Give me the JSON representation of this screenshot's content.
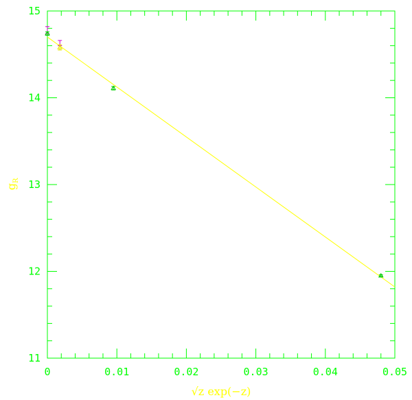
{
  "chart_data": {
    "type": "scatter",
    "xlabel": "√z exp(−z)",
    "ylabel": "g",
    "ylabel_subscript": "R",
    "xlim": [
      0,
      0.05
    ],
    "ylim": [
      11,
      15
    ],
    "x_ticks": [
      "0",
      "0.01",
      "0.02",
      "0.03",
      "0.04",
      "0.05"
    ],
    "y_ticks": [
      "11",
      "12",
      "13",
      "14",
      "15"
    ],
    "x_tick_values": [
      0,
      0.01,
      0.02,
      0.03,
      0.04,
      0.05
    ],
    "y_tick_values": [
      11,
      12,
      13,
      14,
      15
    ],
    "grid": false,
    "colors": {
      "frame": "#00ff00",
      "fit": "#ffff00",
      "labels": "#ffff00",
      "series_magenta": "#cc00cc",
      "series_green": "#00cc00",
      "series_yellow": "#e6e600"
    },
    "fit_line": {
      "x": [
        0,
        0.05
      ],
      "y": [
        14.7,
        11.82
      ]
    },
    "series": [
      {
        "color": "#cc00cc",
        "marker": "errorbar",
        "points": [
          {
            "x": 0.0,
            "y": 14.78,
            "err": 0.04
          },
          {
            "x": 0.0018,
            "y": 14.63,
            "err": 0.03
          }
        ]
      },
      {
        "color": "#00cc00",
        "marker": "triangle",
        "points": [
          {
            "x": 0.0,
            "y": 14.74,
            "err": 0.02
          },
          {
            "x": 0.0095,
            "y": 14.11,
            "err": 0.02
          },
          {
            "x": 0.048,
            "y": 11.95,
            "err": 0.01
          }
        ]
      },
      {
        "color": "#e6e600",
        "marker": "triangle",
        "points": [
          {
            "x": 0.0018,
            "y": 14.58,
            "err": 0.03
          }
        ]
      }
    ]
  }
}
